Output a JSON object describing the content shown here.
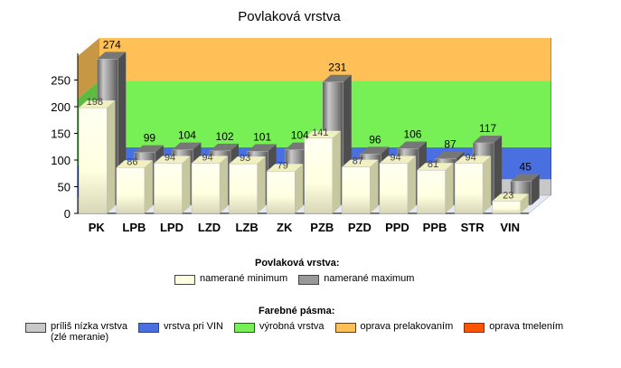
{
  "chart_data": {
    "type": "bar",
    "title": "Povlaková vrstva",
    "categories": [
      "PK",
      "LPB",
      "LPD",
      "LZD",
      "LZB",
      "ZK",
      "PZB",
      "PZD",
      "PPD",
      "PPB",
      "STR",
      "VIN"
    ],
    "series": [
      {
        "name": "namerané minimum",
        "values": [
          198,
          86,
          94,
          94,
          93,
          79,
          141,
          87,
          94,
          81,
          94,
          23
        ],
        "color": "#FFFFE0"
      },
      {
        "name": "namerané maximum",
        "values": [
          274,
          99,
          104,
          102,
          101,
          104,
          231,
          96,
          106,
          87,
          117,
          45
        ],
        "color": "#999999"
      }
    ],
    "yticks": [
      0,
      50,
      100,
      150,
      200,
      250
    ],
    "ylim": [
      0,
      300
    ],
    "bands": [
      {
        "name": "príliš nízka vrstva\n(zlé meranie)",
        "from": 0,
        "to": 30,
        "color": "#C8C8C8"
      },
      {
        "name": "vrstva pri VIN",
        "from": 30,
        "to": 90,
        "color": "#4A6FE0"
      },
      {
        "name": "výrobná vrstva",
        "from": 90,
        "to": 215,
        "color": "#77F055"
      },
      {
        "name": "oprava prelakovaním",
        "from": 215,
        "to": 330,
        "color": "#FFC157"
      },
      {
        "name": "oprava tmelením",
        "from": 330,
        "to": 330,
        "color": "#FF5500"
      }
    ]
  },
  "legend": {
    "series_title": "Povlaková vrstva:",
    "bands_title": "Farebné pásma:"
  }
}
